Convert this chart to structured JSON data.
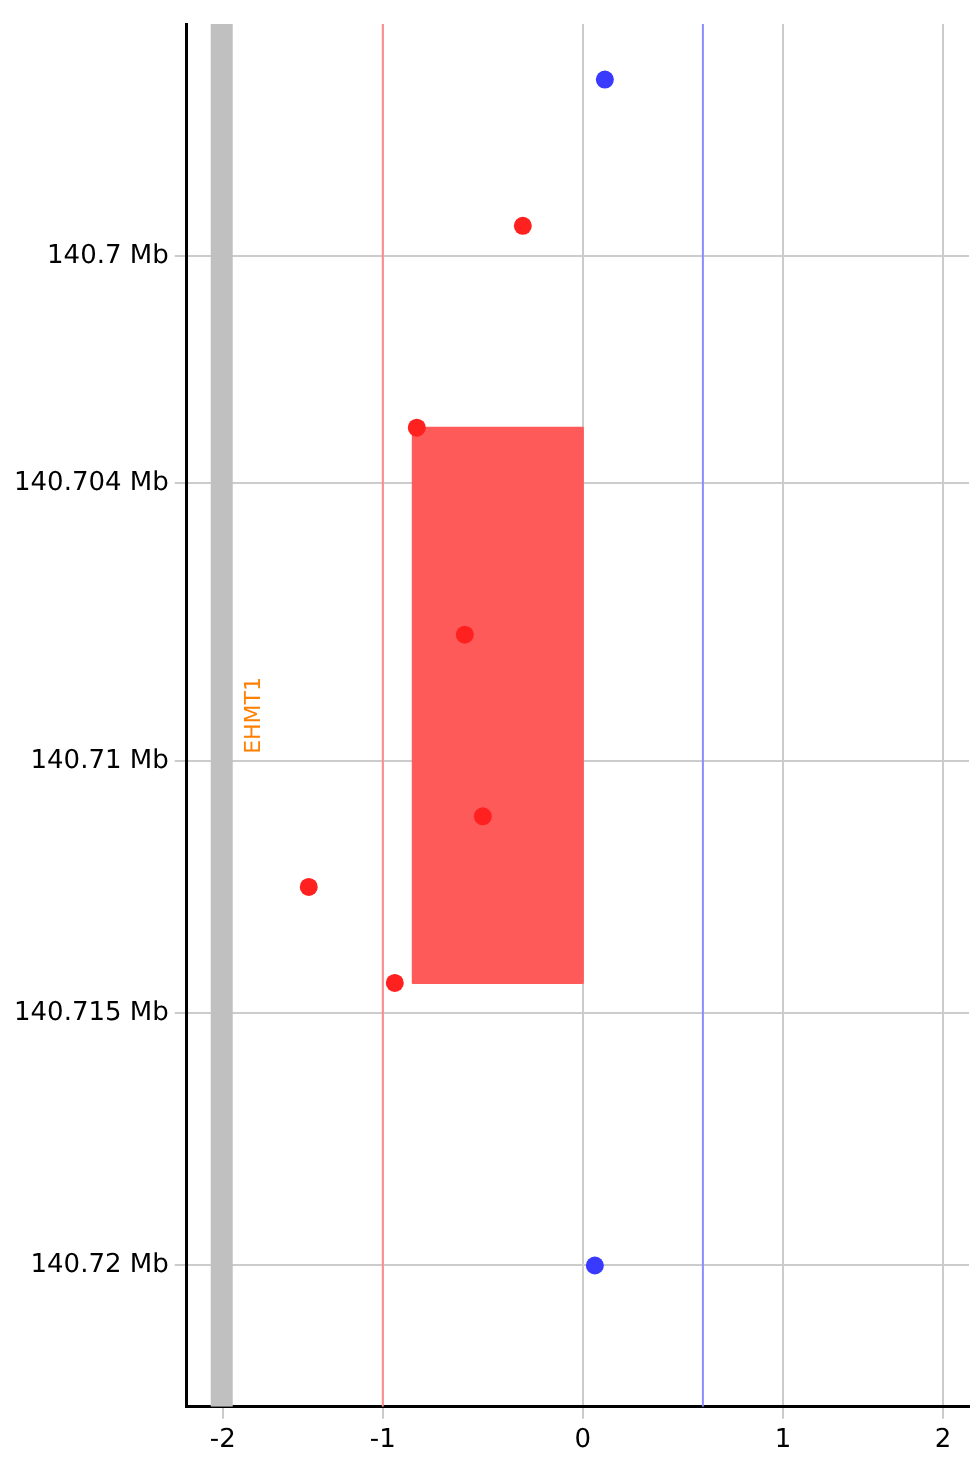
{
  "chart_data": {
    "type": "scatter",
    "series": [
      {
        "type": "area",
        "marker": "none",
        "color": "#ff5a5a",
        "x": [
          -0.85,
          0,
          0,
          -0.85,
          -0.85
        ],
        "values": [
          140.7034,
          140.7034,
          140.7144,
          140.7144,
          140.7034
        ]
      },
      {
        "color": "#ff2020",
        "x": [
          -0.3,
          -0.83,
          -0.59,
          -0.5,
          -1.37,
          -0.94
        ],
        "values": [
          140.6994,
          140.7034,
          140.7075,
          140.7111,
          140.7125,
          140.7144
        ]
      },
      {
        "color": "#3a3aff",
        "x": [
          0.11,
          0.06
        ],
        "values": [
          140.6965,
          140.72
        ]
      }
    ],
    "xlim": [
      -1.98,
      1.93
    ],
    "xticks": [
      {
        "value": -1.8,
        "label": "-2"
      },
      -1,
      0,
      1,
      {
        "value": 1.8,
        "label": "2"
      }
    ],
    "ylim": [
      140.7228,
      140.6954
    ],
    "yticks": [
      {
        "value": 140.7,
        "label": "140.7 Mb"
      },
      {
        "value": 140.7045,
        "label": "140.704 Mb"
      },
      {
        "value": 140.71,
        "label": "140.71 Mb"
      },
      {
        "value": 140.715,
        "label": "140.715 Mb"
      },
      {
        "value": 140.72,
        "label": "140.72 Mb"
      }
    ],
    "ref_lines": [
      {
        "axis": "x",
        "value": -1,
        "color": "#ff8c8c"
      },
      {
        "axis": "x",
        "value": 0.6,
        "color": "#8c8cff"
      }
    ],
    "bands": [
      {
        "axis": "x",
        "from": -1.86,
        "to": -1.75,
        "color": "#c0c0c0",
        "label": "EHMT1"
      }
    ],
    "grid": true,
    "marker": "circle",
    "legend": false
  }
}
